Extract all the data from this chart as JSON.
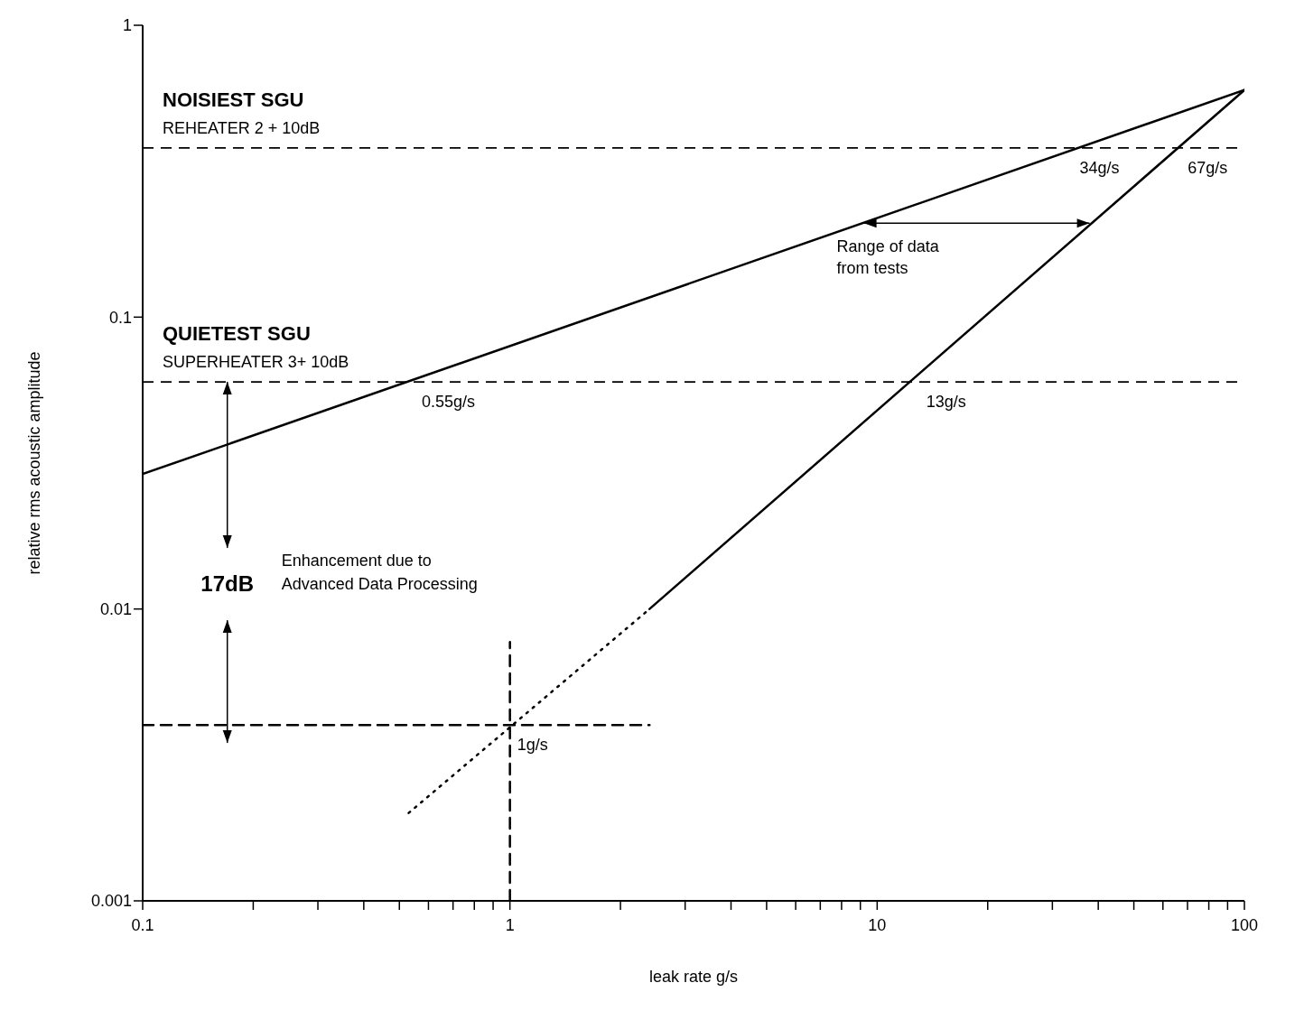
{
  "chart_data": {
    "type": "line",
    "xlabel": "leak rate g/s",
    "ylabel": "relative rms acoustic amplitude",
    "log": "xy",
    "grid": false,
    "marker": "none",
    "xlim": [
      0.1,
      100
    ],
    "ylim": [
      0.001,
      1
    ],
    "xticks": [
      0.1,
      {
        "value": 0.2,
        "label": null
      },
      {
        "value": 0.3,
        "label": null
      },
      {
        "value": 0.4,
        "label": null
      },
      {
        "value": 0.5,
        "label": null
      },
      {
        "value": 0.6,
        "label": null
      },
      {
        "value": 0.7,
        "label": null
      },
      {
        "value": 0.8,
        "label": null
      },
      {
        "value": 0.9,
        "label": null
      },
      1,
      {
        "value": 2,
        "label": null
      },
      {
        "value": 3,
        "label": null
      },
      {
        "value": 4,
        "label": null
      },
      {
        "value": 5,
        "label": null
      },
      {
        "value": 6,
        "label": null
      },
      {
        "value": 7,
        "label": null
      },
      {
        "value": 8,
        "label": null
      },
      {
        "value": 9,
        "label": null
      },
      10,
      {
        "value": 20,
        "label": null
      },
      {
        "value": 30,
        "label": null
      },
      {
        "value": 40,
        "label": null
      },
      {
        "value": 50,
        "label": null
      },
      {
        "value": 60,
        "label": null
      },
      {
        "value": 70,
        "label": null
      },
      {
        "value": 80,
        "label": null
      },
      {
        "value": 90,
        "label": null
      },
      100
    ],
    "yticks": [
      0.001,
      0.01,
      0.1,
      1
    ],
    "series": [
      {
        "color": "#000000",
        "line_style": "solid",
        "x": [
          0.1,
          100
        ],
        "values": [
          0.029,
          0.6
        ]
      },
      {
        "color": "#000000",
        "line_style": "solid",
        "x": [
          2.4,
          100
        ],
        "values": [
          0.01,
          0.6
        ]
      },
      {
        "color": "#000000",
        "line_style": "dotted",
        "x": [
          0.53,
          2.4
        ],
        "values": [
          0.002,
          0.01
        ]
      },
      {
        "color": "#000000",
        "line_style": "dashed",
        "x": [
          0.1,
          2.4
        ],
        "values": [
          0.004,
          0.004
        ]
      },
      {
        "color": "#000000",
        "line_style": "dashed",
        "x": [
          1,
          1
        ],
        "values": [
          0.001,
          0.0077
        ]
      }
    ],
    "ref_lines": [
      {
        "axis": "y",
        "value": 0.38,
        "label": "NOISIEST SGU\nREHEATER 2 + 10dB",
        "line_style": "dashed",
        "color": "#000000"
      },
      {
        "axis": "y",
        "value": 0.06,
        "label": "QUIETEST SGU\nSUPERHEATER 3+ 10dB",
        "line_style": "dashed",
        "color": "#000000"
      }
    ],
    "annotations": [
      "Enhancement due to\nAdvanced Data Processing",
      {
        "text": "17dB",
        "x": 0.17,
        "y": 0.06
      },
      {
        "text": "Range of data\nfrom tests",
        "x": 9.2,
        "y": 0.21
      },
      {
        "text": "34g/s",
        "x": 34,
        "y": 0.38
      },
      {
        "text": "67g/s",
        "x": 67,
        "y": 0.38
      },
      {
        "text": "0.55g/s",
        "x": 0.55,
        "y": 0.06
      },
      {
        "text": "13g/s",
        "x": 13,
        "y": 0.06
      },
      {
        "text": "1g/s",
        "x": 1,
        "y": 0.004
      }
    ]
  }
}
